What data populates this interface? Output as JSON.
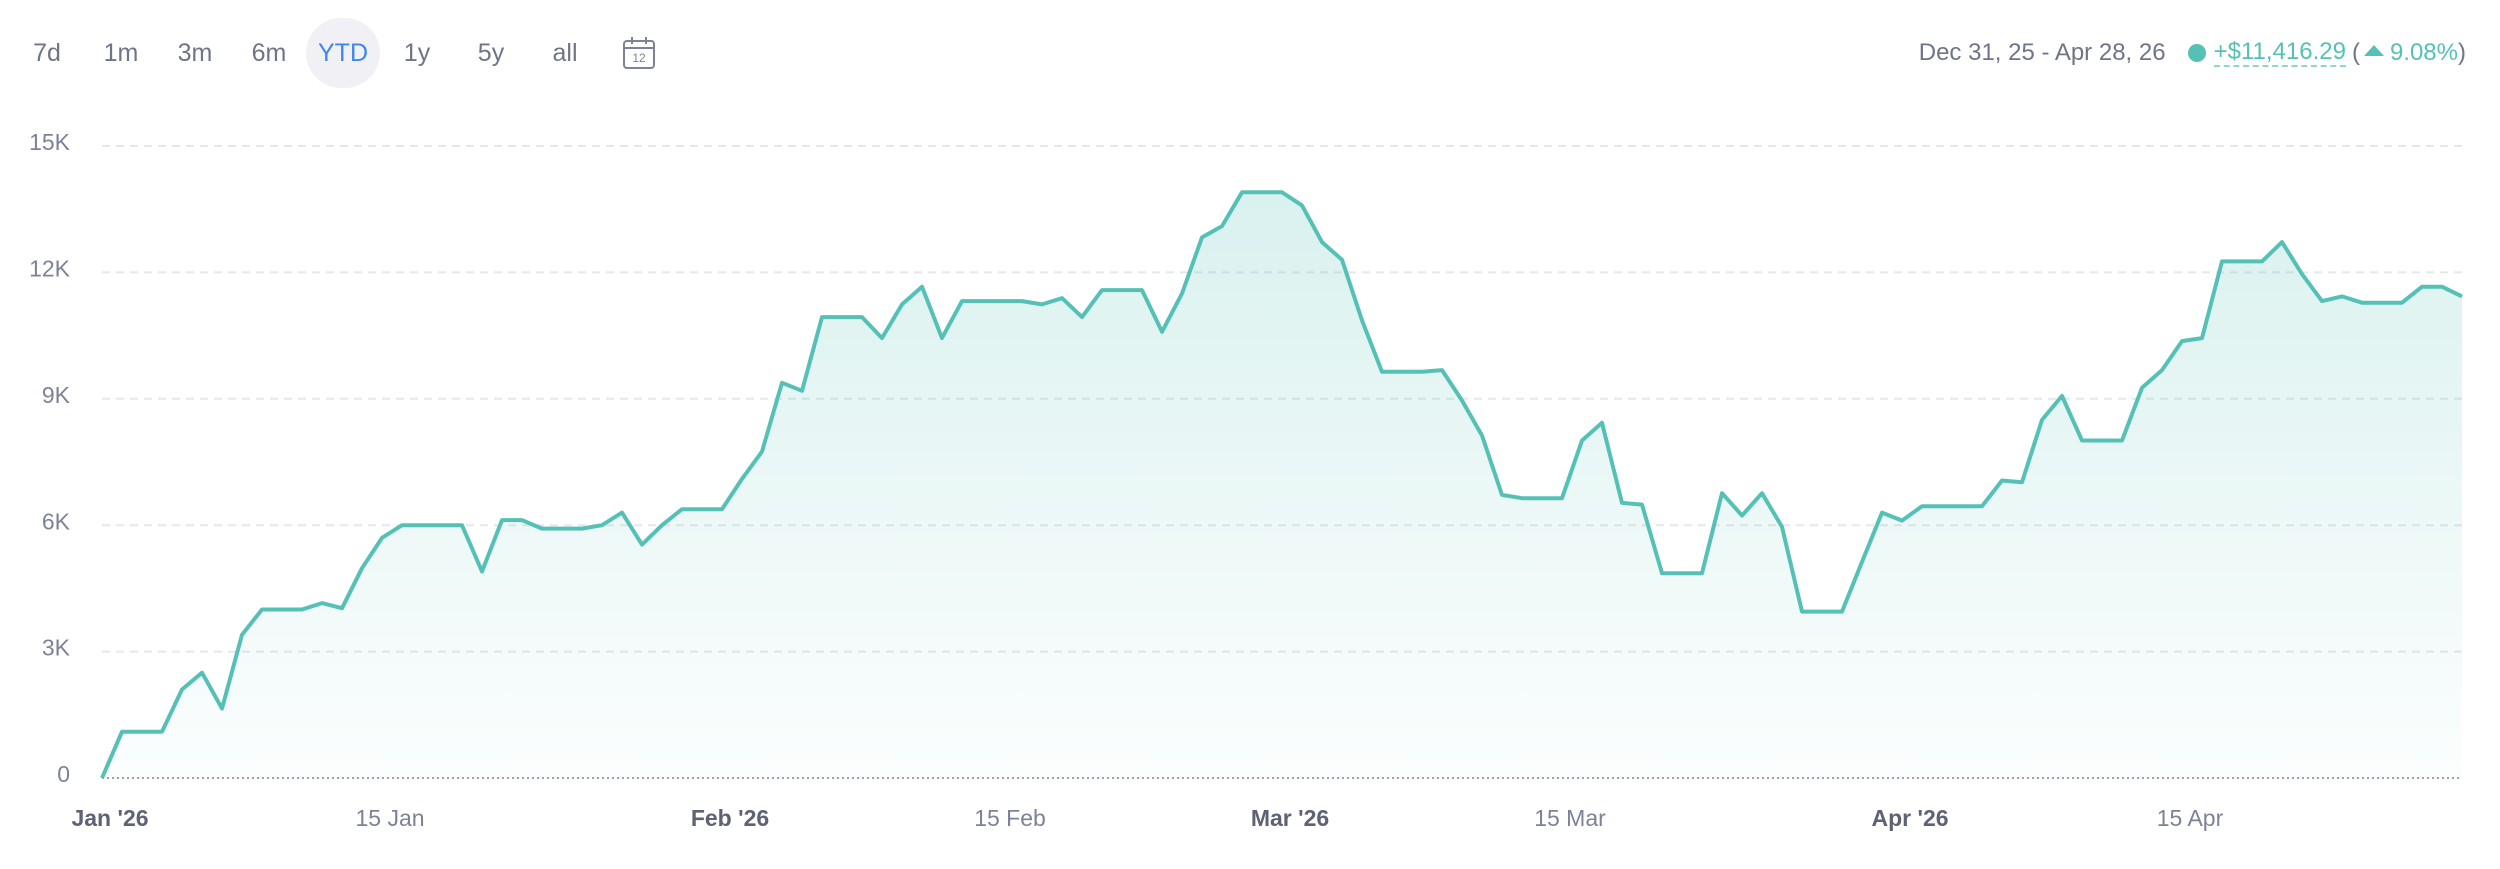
{
  "header": {
    "range_buttons": [
      "7d",
      "1m",
      "3m",
      "6m",
      "YTD",
      "1y",
      "5y",
      "all"
    ],
    "active_button": "YTD",
    "calendar_day": "12",
    "date_range": "Dec 31, 25 - Apr 28, 26",
    "change_amount": "+$11,416.29",
    "change_delimiters": [
      "(",
      ")"
    ],
    "change_percent": "9.08%"
  },
  "chart_data": {
    "type": "area",
    "color": "#55c1b6",
    "x": [
      "2025-12-31",
      "2026-01-01",
      "2026-01-02",
      "2026-01-03",
      "2026-01-04",
      "2026-01-05",
      "2026-01-06",
      "2026-01-07",
      "2026-01-08",
      "2026-01-09",
      "2026-01-10",
      "2026-01-11",
      "2026-01-12",
      "2026-01-13",
      "2026-01-14",
      "2026-01-15",
      "2026-01-16",
      "2026-01-17",
      "2026-01-18",
      "2026-01-19",
      "2026-01-20",
      "2026-01-21",
      "2026-01-22",
      "2026-01-23",
      "2026-01-24",
      "2026-01-25",
      "2026-01-26",
      "2026-01-27",
      "2026-01-28",
      "2026-01-29",
      "2026-01-30",
      "2026-01-31",
      "2026-02-01",
      "2026-02-02",
      "2026-02-03",
      "2026-02-04",
      "2026-02-05",
      "2026-02-06",
      "2026-02-07",
      "2026-02-08",
      "2026-02-09",
      "2026-02-10",
      "2026-02-11",
      "2026-02-12",
      "2026-02-13",
      "2026-02-14",
      "2026-02-15",
      "2026-02-16",
      "2026-02-17",
      "2026-02-18",
      "2026-02-19",
      "2026-02-20",
      "2026-02-21",
      "2026-02-22",
      "2026-02-23",
      "2026-02-24",
      "2026-02-25",
      "2026-02-26",
      "2026-02-27",
      "2026-02-28",
      "2026-03-01",
      "2026-03-02",
      "2026-03-03",
      "2026-03-04",
      "2026-03-05",
      "2026-03-06",
      "2026-03-07",
      "2026-03-08",
      "2026-03-09",
      "2026-03-10",
      "2026-03-11",
      "2026-03-12",
      "2026-03-13",
      "2026-03-14",
      "2026-03-15",
      "2026-03-16",
      "2026-03-17",
      "2026-03-18",
      "2026-03-19",
      "2026-03-20",
      "2026-03-21",
      "2026-03-22",
      "2026-03-23",
      "2026-03-24",
      "2026-03-25",
      "2026-03-26",
      "2026-03-27",
      "2026-03-28",
      "2026-03-29",
      "2026-03-30",
      "2026-03-31",
      "2026-04-01",
      "2026-04-02",
      "2026-04-03",
      "2026-04-04",
      "2026-04-05",
      "2026-04-06",
      "2026-04-07",
      "2026-04-08",
      "2026-04-09",
      "2026-04-10",
      "2026-04-11",
      "2026-04-12",
      "2026-04-13",
      "2026-04-14",
      "2026-04-15",
      "2026-04-16",
      "2026-04-17",
      "2026-04-18",
      "2026-04-19",
      "2026-04-20",
      "2026-04-21",
      "2026-04-22",
      "2026-04-23",
      "2026-04-24",
      "2026-04-25",
      "2026-04-26",
      "2026-04-27",
      "2026-04-28"
    ],
    "values": [
      0,
      1100,
      1100,
      1100,
      2100,
      2500,
      1650,
      3400,
      4000,
      4000,
      4000,
      4150,
      4030,
      4980,
      5700,
      6000,
      6000,
      6000,
      6000,
      4900,
      6120,
      6120,
      5920,
      5920,
      5920,
      6000,
      6300,
      5540,
      6000,
      6380,
      6380,
      6380,
      7100,
      7750,
      9380,
      9190,
      10940,
      10940,
      10940,
      10440,
      11240,
      11660,
      10440,
      11320,
      11320,
      11320,
      11320,
      11240,
      11390,
      10940,
      11580,
      11580,
      11580,
      10590,
      11500,
      12830,
      13100,
      13900,
      13900,
      13900,
      13590,
      12720,
      12300,
      10860,
      9640,
      9640,
      9640,
      9680,
      8960,
      8130,
      6720,
      6640,
      6640,
      6640,
      8010,
      8430,
      6530,
      6490,
      4860,
      4860,
      4860,
      6760,
      6230,
      6760,
      5960,
      3950,
      3950,
      3950,
      5130,
      6300,
      6110,
      6450,
      6450,
      6450,
      6450,
      7060,
      7020,
      8500,
      9070,
      8010,
      8010,
      8010,
      9260,
      9680,
      10370,
      10440,
      12260,
      12260,
      12260,
      12720,
      11960,
      11320,
      11430,
      11280,
      11280,
      11280,
      11660,
      11660,
      11430
    ],
    "xlim": [
      "2025-12-31",
      "2026-04-28"
    ],
    "xticks": [
      {
        "value": "2026-01-01",
        "label": "Jan '26"
      },
      {
        "value": "2026-01-15",
        "label": "15 Jan"
      },
      {
        "value": "2026-02-01",
        "label": "Feb '26"
      },
      {
        "value": "2026-02-15",
        "label": "15 Feb"
      },
      {
        "value": "2026-03-01",
        "label": "Mar '26"
      },
      {
        "value": "2026-03-15",
        "label": "15 Mar"
      },
      {
        "value": "2026-04-01",
        "label": "Apr '26"
      },
      {
        "value": "2026-04-15",
        "label": "15 Apr"
      }
    ],
    "ylim": [
      0,
      15000
    ],
    "yticks": [
      0,
      {
        "value": 3000,
        "label": "3K"
      },
      {
        "value": 6000,
        "label": "6K"
      },
      {
        "value": 9000,
        "label": "9K"
      },
      {
        "value": 12000,
        "label": "12K"
      },
      {
        "value": 15000,
        "label": "15K"
      }
    ],
    "grid": true
  }
}
